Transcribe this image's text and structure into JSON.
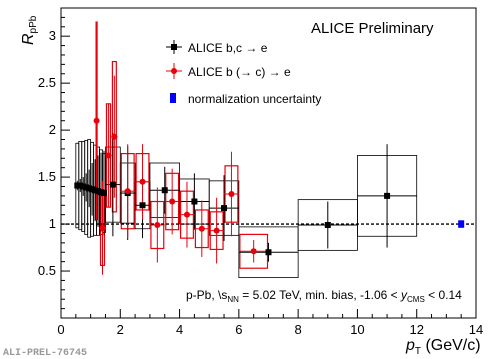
{
  "chart_data": {
    "type": "scatter",
    "title": "ALICE Preliminary",
    "ylabel_main": "R",
    "ylabel_sub": "pPb",
    "xlabel_main": "p",
    "xlabel_sub": "T",
    "xlabel_unit": " (GeV/c)",
    "xlim": [
      0,
      14
    ],
    "ylim": [
      0,
      3.3
    ],
    "xticks": [
      0,
      2,
      4,
      6,
      8,
      10,
      12,
      14
    ],
    "yticks": [
      0.5,
      1,
      1.5,
      2,
      2.5,
      3
    ],
    "reference_line": 1,
    "legend_placement": "upper-center",
    "legend": {
      "bc": "ALICE b,c → e",
      "b": "ALICE b (→ c) → e",
      "norm": "normalization uncertainty"
    },
    "annotation": {
      "pre": "p-Pb, ",
      "sqrt": "\\",
      "s": "s",
      "nn": "NN",
      "mid": " = 5.02 TeV, min. bias, -1.06 < ",
      "y": "y",
      "cms": "CMS",
      "post": " < 0.14"
    },
    "watermark": "ALI-PREL-76745",
    "colors": {
      "bc": "#000000",
      "b": "#e8000b",
      "norm": "#0000ff"
    },
    "series": [
      {
        "key": "bc",
        "points": [
          {
            "x": 0.55,
            "y": 1.41,
            "stat": 0.05,
            "sys": 0.45,
            "xlo": 0.5,
            "xhi": 0.6
          },
          {
            "x": 0.65,
            "y": 1.41,
            "stat": 0.07,
            "sys": 0.47,
            "xlo": 0.6,
            "xhi": 0.7
          },
          {
            "x": 0.75,
            "y": 1.4,
            "stat": 0.1,
            "sys": 0.48,
            "xlo": 0.7,
            "xhi": 0.8
          },
          {
            "x": 0.85,
            "y": 1.39,
            "stat": 0.15,
            "sys": 0.5,
            "xlo": 0.8,
            "xhi": 0.9
          },
          {
            "x": 0.95,
            "y": 1.38,
            "stat": 0.2,
            "sys": 0.52,
            "xlo": 0.9,
            "xhi": 1.0
          },
          {
            "x": 1.05,
            "y": 1.37,
            "stat": 0.28,
            "sys": 0.5,
            "xlo": 1.0,
            "xhi": 1.1
          },
          {
            "x": 1.15,
            "y": 1.36,
            "stat": 0.33,
            "sys": 0.48,
            "xlo": 1.1,
            "xhi": 1.2
          },
          {
            "x": 1.25,
            "y": 1.35,
            "stat": 0.38,
            "sys": 0.47,
            "xlo": 1.2,
            "xhi": 1.3
          },
          {
            "x": 1.35,
            "y": 1.34,
            "stat": 0.42,
            "sys": 0.45,
            "xlo": 1.3,
            "xhi": 1.4
          },
          {
            "x": 1.45,
            "y": 1.33,
            "stat": 0.45,
            "sys": 0.42,
            "xlo": 1.4,
            "xhi": 1.5
          },
          {
            "x": 1.75,
            "y": 1.42,
            "stat": 0.55,
            "sys": 0.4,
            "xlo": 1.5,
            "xhi": 2.0
          },
          {
            "x": 2.25,
            "y": 1.33,
            "stat": 0.5,
            "sys": 0.32,
            "xlo": 2.0,
            "xhi": 2.5
          },
          {
            "x": 2.75,
            "y": 1.2,
            "stat": 0.35,
            "sys": 0.25,
            "xlo": 2.5,
            "xhi": 3.0
          },
          {
            "x": 3.5,
            "y": 1.36,
            "stat": 0.25,
            "sys": 0.29,
            "xlo": 3.0,
            "xhi": 4.0
          },
          {
            "x": 4.5,
            "y": 1.24,
            "stat": 0.3,
            "sys": 0.24,
            "xlo": 4.0,
            "xhi": 5.0
          },
          {
            "x": 5.5,
            "y": 1.17,
            "stat": 0.35,
            "sys": 0.29,
            "xlo": 5.0,
            "xhi": 6.0
          },
          {
            "x": 7.0,
            "y": 0.7,
            "stat": 0.1,
            "sys": 0.27,
            "xlo": 6.0,
            "xhi": 8.0
          },
          {
            "x": 9.0,
            "y": 0.99,
            "stat": 0.25,
            "sys": 0.27,
            "xlo": 8.0,
            "xhi": 10.0
          },
          {
            "x": 11.0,
            "y": 1.3,
            "stat": 0.55,
            "sys": 0.43,
            "xlo": 10.0,
            "xhi": 12.0
          }
        ]
      },
      {
        "key": "b",
        "points": [
          {
            "x": 1.2,
            "y": 2.1,
            "stat": 1.0,
            "sys": 1.05,
            "xlo": 1.15,
            "xhi": 1.25
          },
          {
            "x": 1.4,
            "y": 0.96,
            "stat": 0.5,
            "sys": 0.4,
            "xlo": 1.3,
            "xhi": 1.5
          },
          {
            "x": 1.6,
            "y": 1.73,
            "stat": 0.55,
            "sys": 0.55,
            "xlo": 1.5,
            "xhi": 1.7
          },
          {
            "x": 1.8,
            "y": 1.93,
            "stat": 0.65,
            "sys": 0.8,
            "xlo": 1.7,
            "xhi": 1.9
          },
          {
            "x": 2.25,
            "y": 1.35,
            "stat": 0.5,
            "sys": 0.4,
            "xlo": 2.0,
            "xhi": 2.5
          },
          {
            "x": 2.75,
            "y": 1.45,
            "stat": 0.4,
            "sys": 0.3,
            "xlo": 2.5,
            "xhi": 3.0
          },
          {
            "x": 3.25,
            "y": 0.99,
            "stat": 0.4,
            "sys": 0.25,
            "xlo": 3.0,
            "xhi": 3.5
          },
          {
            "x": 3.75,
            "y": 1.24,
            "stat": 0.35,
            "sys": 0.3,
            "xlo": 3.5,
            "xhi": 4.0
          },
          {
            "x": 4.25,
            "y": 1.1,
            "stat": 0.35,
            "sys": 0.25,
            "xlo": 4.0,
            "xhi": 4.5
          },
          {
            "x": 4.75,
            "y": 0.95,
            "stat": 0.3,
            "sys": 0.2,
            "xlo": 4.5,
            "xhi": 5.0
          },
          {
            "x": 5.25,
            "y": 0.93,
            "stat": 0.35,
            "sys": 0.2,
            "xlo": 5.0,
            "xhi": 5.5
          },
          {
            "x": 5.75,
            "y": 1.32,
            "stat": 0.45,
            "sys": 0.3,
            "xlo": 5.5,
            "xhi": 6.0
          },
          {
            "x": 6.5,
            "y": 0.71,
            "stat": 0.12,
            "sys": 0.18,
            "xlo": 6.0,
            "xhi": 7.0
          }
        ]
      }
    ],
    "normalization_uncertainty": {
      "x": 13.5,
      "y": 1.0,
      "half_height": 0.04
    }
  }
}
